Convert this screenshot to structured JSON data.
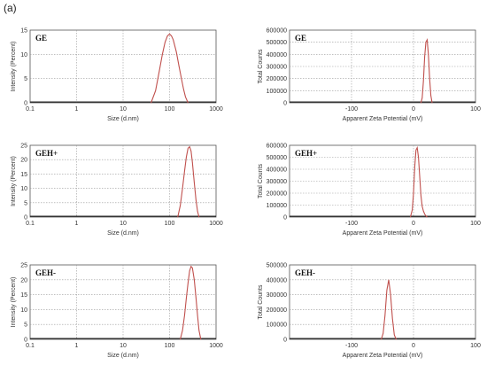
{
  "figure": {
    "panel_label": "(a)"
  },
  "chart_data": [
    {
      "id": "size-ge",
      "type": "line",
      "title": "GE",
      "xlabel": "Size (d.nm)",
      "ylabel": "Intensity (Percent)",
      "xscale": "log",
      "xlim": [
        0.1,
        1000
      ],
      "ylim": [
        0,
        15
      ],
      "grid": true,
      "xticks": [
        "0.1",
        "1",
        "10",
        "100",
        "1000"
      ],
      "yticks": [
        "0",
        "5",
        "10",
        "15"
      ],
      "series": [
        {
          "x": [
            40,
            50,
            60,
            70,
            80,
            90,
            100,
            110,
            120,
            140,
            160,
            180,
            200,
            220,
            250
          ],
          "y": [
            0,
            2.5,
            6.5,
            10,
            12.5,
            13.8,
            14.2,
            13.8,
            13,
            10.5,
            7.5,
            5,
            2.8,
            1.2,
            0
          ]
        }
      ]
    },
    {
      "id": "zeta-ge",
      "type": "line",
      "title": "GE",
      "xlabel": "Apparent Zeta Potential (mV)",
      "ylabel": "Total Counts",
      "xlim": [
        -200,
        100
      ],
      "ylim": [
        0,
        600000
      ],
      "grid": true,
      "xticks": [
        "-100",
        "0",
        "100"
      ],
      "yticks": [
        "0",
        "100000",
        "200000",
        "300000",
        "400000",
        "500000",
        "600000"
      ],
      "series": [
        {
          "x": [
            12,
            14,
            16,
            18,
            20,
            22,
            24,
            26,
            28,
            30
          ],
          "y": [
            0,
            40000,
            180000,
            380000,
            500000,
            520000,
            400000,
            200000,
            60000,
            0
          ]
        }
      ]
    },
    {
      "id": "size-gehp",
      "type": "line",
      "title": "GEH+",
      "xlabel": "Size (d.nm)",
      "ylabel": "Intensity (Percent)",
      "xscale": "log",
      "xlim": [
        0.1,
        1000
      ],
      "ylim": [
        0,
        25
      ],
      "grid": true,
      "xticks": [
        "0.1",
        "1",
        "10",
        "100",
        "1000"
      ],
      "yticks": [
        "0",
        "5",
        "10",
        "15",
        "20",
        "25"
      ],
      "series": [
        {
          "x": [
            150,
            170,
            190,
            210,
            230,
            250,
            270,
            290,
            310,
            340,
            370,
            400,
            430
          ],
          "y": [
            0,
            4,
            10,
            16,
            21,
            24,
            24.5,
            23,
            19,
            12,
            6,
            2,
            0
          ]
        }
      ]
    },
    {
      "id": "zeta-gehp",
      "type": "line",
      "title": "GEH+",
      "xlabel": "Apparent Zeta Potential (mV)",
      "ylabel": "Total Counts",
      "xlim": [
        -200,
        100
      ],
      "ylim": [
        0,
        600000
      ],
      "grid": true,
      "xticks": [
        "-100",
        "0",
        "100"
      ],
      "yticks": [
        "0",
        "100000",
        "200000",
        "300000",
        "400000",
        "500000",
        "600000"
      ],
      "series": [
        {
          "x": [
            -5,
            -2,
            0,
            2,
            4,
            6,
            8,
            10,
            12,
            14,
            16,
            18,
            20,
            22
          ],
          "y": [
            0,
            60000,
            200000,
            420000,
            560000,
            580000,
            500000,
            340000,
            180000,
            90000,
            50000,
            25000,
            10000,
            0
          ]
        }
      ]
    },
    {
      "id": "size-gehm",
      "type": "line",
      "title": "GEH-",
      "xlabel": "Size (d.nm)",
      "ylabel": "Intensity (Percent)",
      "xscale": "log",
      "xlim": [
        0.1,
        1000
      ],
      "ylim": [
        0,
        25
      ],
      "grid": true,
      "xticks": [
        "0.1",
        "1",
        "10",
        "100",
        "1000"
      ],
      "yticks": [
        "0",
        "5",
        "10",
        "15",
        "20",
        "25"
      ],
      "series": [
        {
          "x": [
            170,
            190,
            210,
            230,
            250,
            270,
            290,
            310,
            340,
            370,
            400,
            430,
            470
          ],
          "y": [
            0,
            3,
            8,
            14,
            19,
            23,
            24.5,
            24,
            20,
            14,
            8,
            3,
            0
          ]
        }
      ]
    },
    {
      "id": "zeta-gehm",
      "type": "line",
      "title": "GEH-",
      "xlabel": "Apparent Zeta Potential (mV)",
      "ylabel": "Total Counts",
      "xlim": [
        -200,
        100
      ],
      "ylim": [
        0,
        500000
      ],
      "grid": true,
      "xticks": [
        "-100",
        "0",
        "100"
      ],
      "yticks": [
        "0",
        "100000",
        "200000",
        "300000",
        "400000",
        "500000"
      ],
      "series": [
        {
          "x": [
            -52,
            -49,
            -46,
            -43,
            -40,
            -37,
            -34,
            -31,
            -28
          ],
          "y": [
            0,
            40000,
            160000,
            330000,
            400000,
            300000,
            140000,
            30000,
            0
          ]
        }
      ]
    }
  ]
}
